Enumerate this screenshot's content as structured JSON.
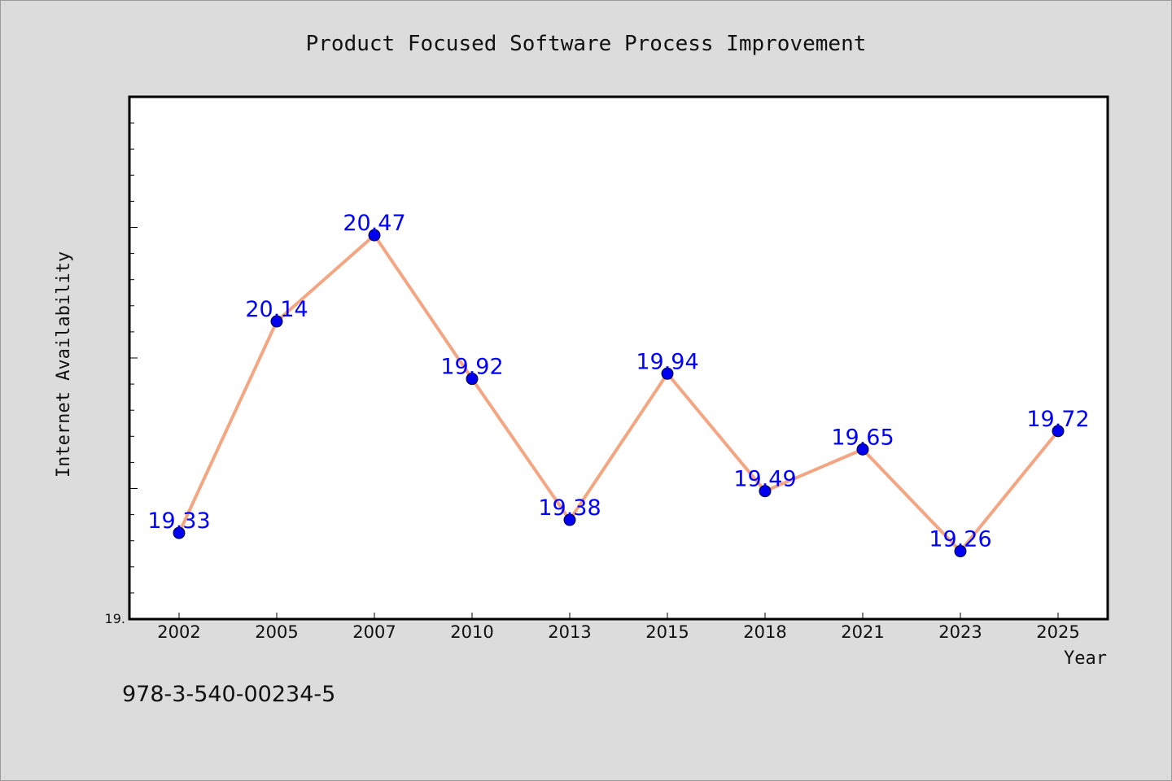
{
  "chart_data": {
    "type": "line",
    "title": "Product Focused Software Process Improvement",
    "xlabel": "Year",
    "ylabel": "Internet Availability",
    "categories": [
      "2002",
      "2005",
      "2007",
      "2010",
      "2013",
      "2015",
      "2018",
      "2021",
      "2023",
      "2025"
    ],
    "series": [
      {
        "values": [
          19.33,
          20.14,
          20.47,
          19.92,
          19.38,
          19.94,
          19.49,
          19.65,
          19.26,
          19.72
        ],
        "labels": [
          "19.33",
          "20.14",
          "20.47",
          "19.92",
          "19.38",
          "19.94",
          "19.49",
          "19.65",
          "19.26",
          "19.72"
        ]
      }
    ],
    "ylim": [
      19.0,
      21.0
    ],
    "y_tick_label": "19.",
    "grid": false,
    "legend": "none",
    "colors": {
      "line": "#f4a582",
      "marker": "#0000ee",
      "data_label": "#0000ff",
      "plot_background": "#ffffff",
      "figure_background": "#dcdcdc"
    }
  },
  "footer": {
    "isbn": "978-3-540-00234-5"
  }
}
